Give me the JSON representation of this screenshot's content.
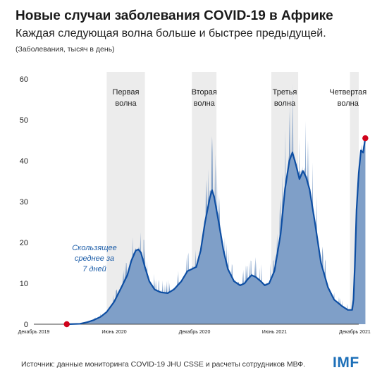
{
  "header": {
    "title": "Новые случаи заболевания COVID-19 в Африке",
    "subtitle": "Каждая следующая волна больше и быстрее предыдущей.",
    "units": "(Заболевания, тысяч в день)"
  },
  "footer": {
    "source": "Источник: данные мониторинга COVID-19 JHU CSSE и расчеты сотрудников МВФ.",
    "logo": "IMF"
  },
  "colors": {
    "area": "#7f9fc8",
    "spikes": "#5a83b8",
    "line": "#0d4ea3",
    "marker": "#d0021b",
    "wave_band": "#ececec",
    "annotation": "#1c5da8"
  },
  "chart_data": {
    "type": "area",
    "ylim": [
      0,
      60
    ],
    "yticks": [
      0,
      10,
      20,
      30,
      40,
      50,
      60
    ],
    "xlim": [
      "2019-12-01",
      "2021-12-10"
    ],
    "xticks": [
      {
        "date": "2019-12-01",
        "label": "Декабрь 2019"
      },
      {
        "date": "2020-06-01",
        "label": "Июнь 2020"
      },
      {
        "date": "2020-12-01",
        "label": "Декабрь 2020"
      },
      {
        "date": "2021-06-01",
        "label": "Июнь 2021"
      },
      {
        "date": "2021-12-01",
        "label": "Декабрь 2021"
      }
    ],
    "waves": [
      {
        "label_lines": [
          "Первая",
          "волна"
        ],
        "start": "2020-05-15",
        "end": "2020-08-10"
      },
      {
        "label_lines": [
          "Вторая",
          "волна"
        ],
        "start": "2020-11-25",
        "end": "2021-01-20"
      },
      {
        "label_lines": [
          "Третья",
          "волна"
        ],
        "start": "2021-05-25",
        "end": "2021-07-25"
      },
      {
        "label_lines": [
          "Четвертая",
          "волна"
        ],
        "start": "2021-11-20",
        "end": "2021-12-10"
      }
    ],
    "annotation": [
      "Скользящее",
      "среднее за",
      "7 дней"
    ],
    "series": [
      {
        "name": "Скользящее среднее за 7 дней",
        "points": [
          [
            "2020-02-14",
            0
          ],
          [
            "2020-03-15",
            0.1
          ],
          [
            "2020-04-01",
            0.5
          ],
          [
            "2020-04-15",
            1.0
          ],
          [
            "2020-05-01",
            1.8
          ],
          [
            "2020-05-15",
            3.0
          ],
          [
            "2020-06-01",
            5.5
          ],
          [
            "2020-06-15",
            8.5
          ],
          [
            "2020-07-01",
            12.0
          ],
          [
            "2020-07-10",
            15.5
          ],
          [
            "2020-07-20",
            18.0
          ],
          [
            "2020-07-26",
            18.3
          ],
          [
            "2020-08-01",
            17.5
          ],
          [
            "2020-08-10",
            14.0
          ],
          [
            "2020-08-20",
            10.5
          ],
          [
            "2020-09-01",
            8.5
          ],
          [
            "2020-09-15",
            7.8
          ],
          [
            "2020-10-01",
            7.6
          ],
          [
            "2020-10-15",
            8.5
          ],
          [
            "2020-11-01",
            10.5
          ],
          [
            "2020-11-15",
            13.0
          ],
          [
            "2020-11-25",
            13.5
          ],
          [
            "2020-12-05",
            14.0
          ],
          [
            "2020-12-15",
            18.0
          ],
          [
            "2020-12-25",
            25.0
          ],
          [
            "2021-01-05",
            31.0
          ],
          [
            "2021-01-10",
            32.8
          ],
          [
            "2021-01-15",
            31.0
          ],
          [
            "2021-01-25",
            25.0
          ],
          [
            "2021-02-05",
            18.0
          ],
          [
            "2021-02-15",
            13.5
          ],
          [
            "2021-03-01",
            10.5
          ],
          [
            "2021-03-15",
            9.5
          ],
          [
            "2021-03-25",
            10.0
          ],
          [
            "2021-04-01",
            11.0
          ],
          [
            "2021-04-10",
            12.0
          ],
          [
            "2021-04-20",
            11.5
          ],
          [
            "2021-05-01",
            10.5
          ],
          [
            "2021-05-10",
            9.5
          ],
          [
            "2021-05-20",
            10.0
          ],
          [
            "2021-06-01",
            13.0
          ],
          [
            "2021-06-15",
            22.0
          ],
          [
            "2021-06-25",
            33.0
          ],
          [
            "2021-07-05",
            40.0
          ],
          [
            "2021-07-12",
            42.0
          ],
          [
            "2021-07-20",
            39.0
          ],
          [
            "2021-07-28",
            35.5
          ],
          [
            "2021-08-05",
            37.5
          ],
          [
            "2021-08-12",
            36.0
          ],
          [
            "2021-08-20",
            33.0
          ],
          [
            "2021-09-01",
            25.0
          ],
          [
            "2021-09-15",
            15.0
          ],
          [
            "2021-10-01",
            9.0
          ],
          [
            "2021-10-15",
            6.0
          ],
          [
            "2021-11-01",
            4.5
          ],
          [
            "2021-11-15",
            3.5
          ],
          [
            "2021-11-25",
            3.5
          ],
          [
            "2021-11-28",
            6.0
          ],
          [
            "2021-12-01",
            14.0
          ],
          [
            "2021-12-05",
            28.0
          ],
          [
            "2021-12-10",
            37.0
          ],
          [
            "2021-12-15",
            42.5
          ],
          [
            "2021-12-20",
            42.0
          ],
          [
            "2021-12-25",
            45.5
          ]
        ]
      }
    ],
    "markers": [
      {
        "date": "2020-02-14",
        "value": 0
      },
      {
        "date": "2021-12-25",
        "value": 45.5
      }
    ]
  }
}
